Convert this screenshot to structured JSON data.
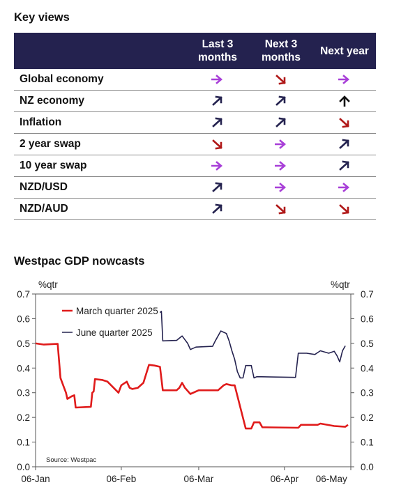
{
  "key_views": {
    "title": "Key views",
    "columns": [
      "Last 3 months",
      "Next 3 months",
      "Next year"
    ],
    "colors": {
      "right": "#a83fd8",
      "down": "#b01818",
      "up": "#24224f",
      "header_bg": "#24224f"
    },
    "rows": [
      {
        "label": "Global economy",
        "views": [
          "right",
          "down",
          "right"
        ]
      },
      {
        "label": "NZ economy",
        "views": [
          "up-right",
          "up-right",
          "up"
        ]
      },
      {
        "label": "Inflation",
        "views": [
          "up-right",
          "up-right",
          "down"
        ]
      },
      {
        "label": "2 year swap",
        "views": [
          "down",
          "right",
          "up-right"
        ]
      },
      {
        "label": "10 year swap",
        "views": [
          "right",
          "right",
          "up-right"
        ]
      },
      {
        "label": "NZD/USD",
        "views": [
          "up-right",
          "right",
          "right"
        ]
      },
      {
        "label": "NZD/AUD",
        "views": [
          "up-right",
          "down",
          "down"
        ]
      }
    ]
  },
  "chart_title": "Westpac GDP nowcasts",
  "chart_data": {
    "type": "line",
    "title": "Westpac GDP nowcasts",
    "ylabel_left": "%qtr",
    "ylabel_right": "%qtr",
    "ylim": [
      0.0,
      0.7
    ],
    "yticks": [
      "0.0",
      "0.1",
      "0.2",
      "0.3",
      "0.4",
      "0.5",
      "0.6",
      "0.7"
    ],
    "xticks": [
      "06-Jan",
      "06-Feb",
      "06-Mar",
      "06-Apr",
      "06-May"
    ],
    "xlim_days": [
      0,
      114
    ],
    "legend_position": "top-left",
    "grid": false,
    "source": "Source: Westpac",
    "series": [
      {
        "name": "March quarter 2025",
        "color": "#e01b1b",
        "points": [
          [
            0,
            0.5
          ],
          [
            3,
            0.495
          ],
          [
            6,
            0.497
          ],
          [
            8,
            0.498
          ],
          [
            9,
            0.36
          ],
          [
            10,
            0.33
          ],
          [
            11,
            0.3
          ],
          [
            11.5,
            0.275
          ],
          [
            13,
            0.285
          ],
          [
            14,
            0.29
          ],
          [
            14.5,
            0.24
          ],
          [
            20,
            0.243
          ],
          [
            20.5,
            0.3
          ],
          [
            21,
            0.305
          ],
          [
            21.5,
            0.355
          ],
          [
            24,
            0.352
          ],
          [
            26,
            0.345
          ],
          [
            30,
            0.3
          ],
          [
            31,
            0.33
          ],
          [
            33,
            0.345
          ],
          [
            34,
            0.32
          ],
          [
            35,
            0.315
          ],
          [
            37,
            0.32
          ],
          [
            39,
            0.34
          ],
          [
            41,
            0.413
          ],
          [
            43,
            0.41
          ],
          [
            45,
            0.405
          ],
          [
            46,
            0.31
          ],
          [
            51,
            0.31
          ],
          [
            52,
            0.32
          ],
          [
            53,
            0.34
          ],
          [
            54,
            0.32
          ],
          [
            56,
            0.295
          ],
          [
            59,
            0.31
          ],
          [
            66,
            0.31
          ],
          [
            68,
            0.33
          ],
          [
            69,
            0.335
          ],
          [
            71,
            0.33
          ],
          [
            72,
            0.33
          ],
          [
            76,
            0.155
          ],
          [
            78,
            0.155
          ],
          [
            79,
            0.18
          ],
          [
            81,
            0.18
          ],
          [
            82,
            0.16
          ],
          [
            95,
            0.158
          ],
          [
            96,
            0.17
          ],
          [
            98,
            0.17
          ],
          [
            102,
            0.17
          ],
          [
            103,
            0.175
          ],
          [
            108,
            0.165
          ],
          [
            112,
            0.162
          ],
          [
            113,
            0.17
          ]
        ]
      },
      {
        "name": "June quarter 2025",
        "color": "#24224f",
        "points": [
          [
            45,
            0.625
          ],
          [
            45.5,
            0.63
          ],
          [
            46,
            0.51
          ],
          [
            51,
            0.512
          ],
          [
            53,
            0.53
          ],
          [
            55,
            0.5
          ],
          [
            56,
            0.475
          ],
          [
            58,
            0.485
          ],
          [
            64,
            0.488
          ],
          [
            65,
            0.51
          ],
          [
            67,
            0.55
          ],
          [
            68,
            0.545
          ],
          [
            69,
            0.54
          ],
          [
            70,
            0.51
          ],
          [
            71,
            0.47
          ],
          [
            72,
            0.435
          ],
          [
            73,
            0.385
          ],
          [
            74,
            0.36
          ],
          [
            75,
            0.36
          ],
          [
            76,
            0.41
          ],
          [
            78,
            0.41
          ],
          [
            79,
            0.36
          ],
          [
            80,
            0.365
          ],
          [
            94,
            0.362
          ],
          [
            95,
            0.46
          ],
          [
            98,
            0.46
          ],
          [
            101,
            0.455
          ],
          [
            103,
            0.47
          ],
          [
            106,
            0.46
          ],
          [
            108,
            0.468
          ],
          [
            109,
            0.45
          ],
          [
            110,
            0.425
          ],
          [
            111,
            0.47
          ],
          [
            112,
            0.49
          ]
        ]
      }
    ]
  }
}
